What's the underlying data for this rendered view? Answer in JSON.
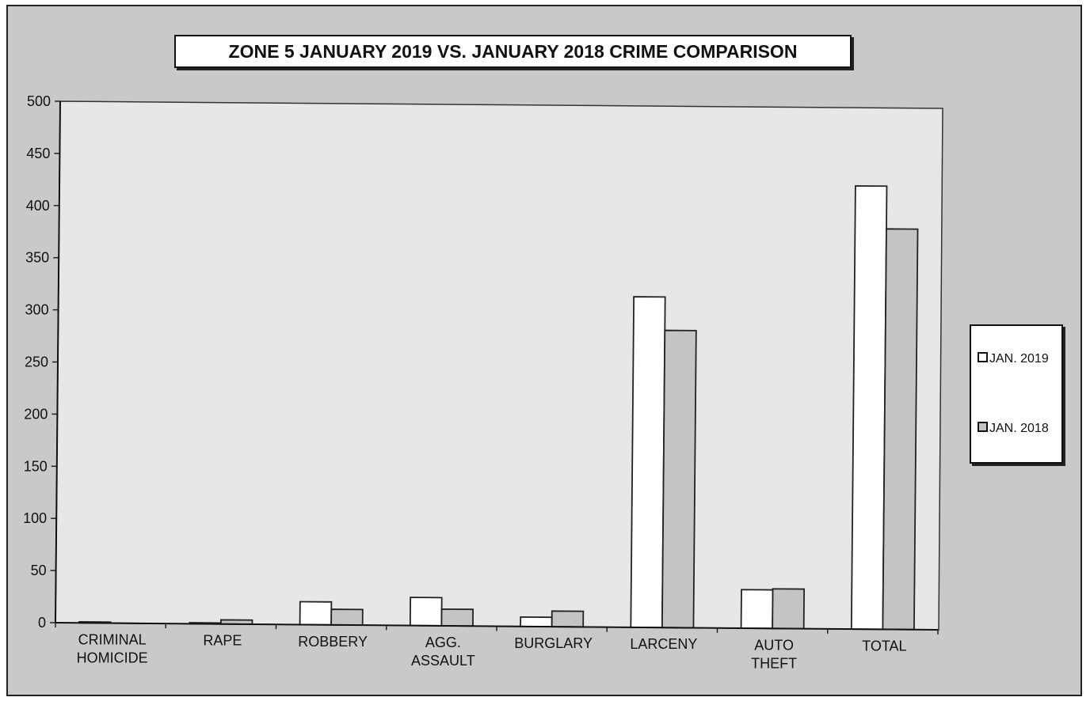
{
  "chart_data": {
    "type": "bar",
    "title": "ZONE 5  JANUARY 2019 VS. JANUARY 2018 CRIME COMPARISON",
    "categories": [
      [
        "CRIMINAL",
        "HOMICIDE"
      ],
      [
        "RAPE"
      ],
      [
        "ROBBERY"
      ],
      [
        "AGG.",
        "ASSAULT"
      ],
      [
        "BURGLARY"
      ],
      [
        "LARCENY"
      ],
      [
        "AUTO",
        "THEFT"
      ],
      [
        "TOTAL"
      ]
    ],
    "series": [
      {
        "name": "JAN. 2019",
        "values": [
          1,
          1,
          22,
          27,
          9,
          317,
          37,
          425
        ],
        "color": "#ffffff"
      },
      {
        "name": "JAN. 2018",
        "values": [
          0,
          4,
          15,
          16,
          15,
          285,
          38,
          384
        ],
        "color": "#c4c4c4"
      }
    ],
    "ylim": [
      0,
      500
    ],
    "yticks": [
      "0",
      "50",
      "100",
      "150",
      "200",
      "250",
      "300",
      "350",
      "400",
      "450",
      "500"
    ],
    "legend_position": "right",
    "grid": false
  }
}
